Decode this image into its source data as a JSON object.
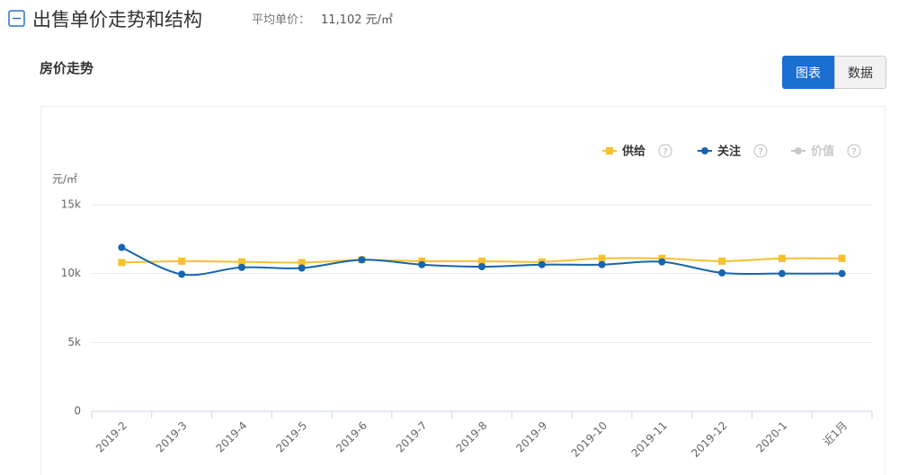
{
  "header": {
    "title": "出售单价走势和结构",
    "avg_label": "平均单价：",
    "avg_value": "11,102 元/㎡"
  },
  "section_title": "房价走势",
  "tabs": [
    "图表",
    "数据"
  ],
  "chart_data": {
    "type": "line",
    "y_unit": "元/㎡",
    "categories": [
      "2019-2",
      "2019-3",
      "2019-4",
      "2019-5",
      "2019-6",
      "2019-7",
      "2019-8",
      "2019-9",
      "2019-10",
      "2019-11",
      "2019-12",
      "2020-1",
      "近1月"
    ],
    "series": [
      {
        "name": "供给",
        "color": "#f7c030",
        "marker": "square",
        "values": [
          10800,
          10900,
          10850,
          10800,
          11000,
          10900,
          10900,
          10850,
          11100,
          11100,
          10900,
          11100,
          11100
        ]
      },
      {
        "name": "关注",
        "color": "#1565b0",
        "marker": "circle",
        "values": [
          11900,
          9950,
          10450,
          10400,
          11000,
          10650,
          10500,
          10650,
          10650,
          10850,
          10050,
          10000,
          10000
        ]
      }
    ],
    "hidden_series": [
      {
        "name": "价值",
        "color": "#c8c8c8"
      }
    ],
    "ylim": [
      0,
      15000
    ],
    "yticks": [
      0,
      {
        "value": 5000,
        "label": "5k"
      },
      {
        "value": 10000,
        "label": "10k"
      },
      {
        "value": 15000,
        "label": "15k"
      }
    ],
    "grid": true
  }
}
